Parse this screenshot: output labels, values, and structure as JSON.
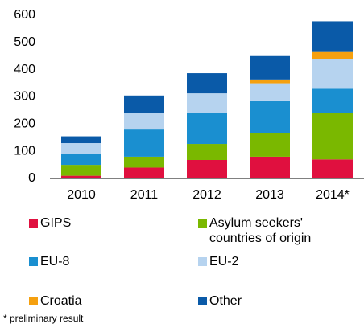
{
  "chart_data": {
    "type": "stacked_bar",
    "categories": [
      "2010",
      "2011",
      "2012",
      "2013",
      "2014*"
    ],
    "series": [
      {
        "name": "GIPS",
        "color": "#e0103f",
        "values": [
          10,
          40,
          68,
          80,
          70
        ]
      },
      {
        "name": "Asylum seekers' countries of origin",
        "color": "#7ab800",
        "values": [
          40,
          40,
          59,
          88,
          170
        ]
      },
      {
        "name": "EU-8",
        "color": "#1a8fd0",
        "values": [
          40,
          100,
          113,
          116,
          90
        ]
      },
      {
        "name": "EU-2",
        "color": "#b6d3ef",
        "values": [
          40,
          60,
          73,
          66,
          110
        ]
      },
      {
        "name": "Croatia",
        "color": "#f5a00f",
        "values": [
          0,
          0,
          0,
          14,
          25
        ]
      },
      {
        "name": "Other",
        "color": "#0a5aa8",
        "values": [
          25,
          65,
          74,
          86,
          113
        ]
      }
    ],
    "ylim": [
      0,
      600
    ],
    "yticks": [
      0,
      100,
      200,
      300,
      400,
      500,
      600
    ],
    "note": "* preliminary result"
  }
}
